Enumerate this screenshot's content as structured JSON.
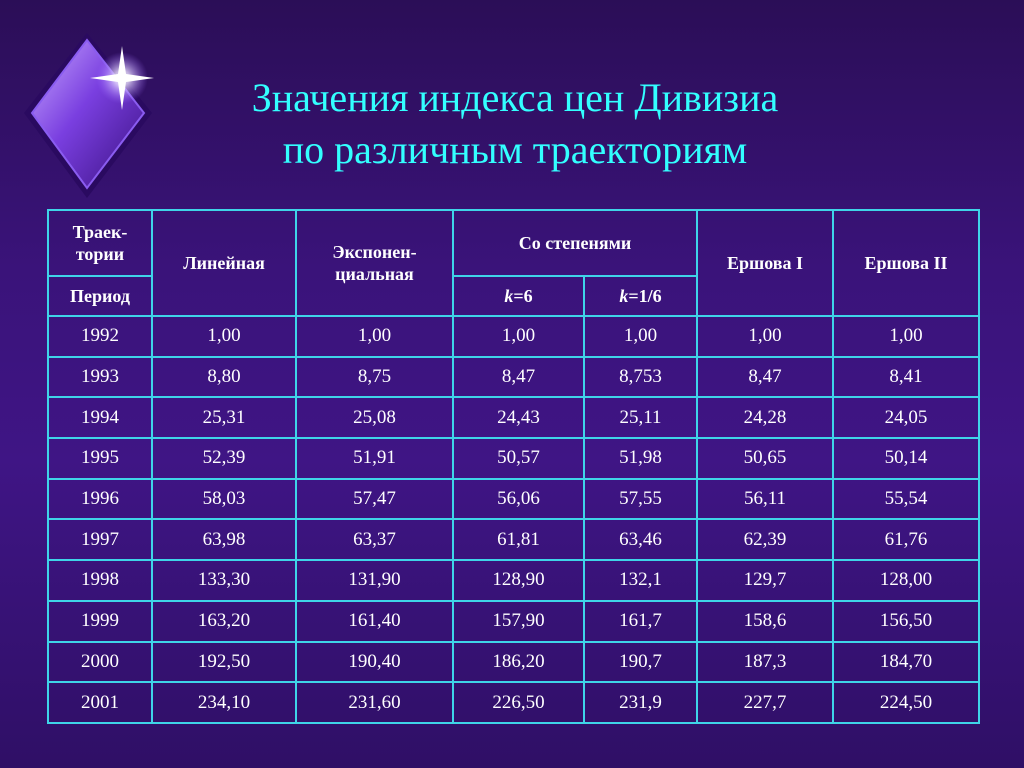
{
  "title": {
    "line1": "Значения индекса цен Дивизиа",
    "line2": "по различным траекториям"
  },
  "colors": {
    "background": "#3a137a",
    "title": "#33ffff",
    "grid": "#3fd4e8",
    "text": "#ffffff"
  },
  "decoration": {
    "icon": "sparkle-diamond-icon"
  },
  "table": {
    "header": {
      "trajectory": "Траек-тории",
      "period": "Период",
      "linear": "Линейная",
      "exponential": "Экспонен-циальная",
      "powers": "Со степенями",
      "k6": "k=6",
      "k16": "k=1/6",
      "ershov1": "Ершова I",
      "ershov2": "Ершова II"
    },
    "rows": [
      [
        "1992",
        "1,00",
        "1,00",
        "1,00",
        "1,00",
        "1,00",
        "1,00"
      ],
      [
        "1993",
        "8,80",
        "8,75",
        "8,47",
        "8,753",
        "8,47",
        "8,41"
      ],
      [
        "1994",
        "25,31",
        "25,08",
        "24,43",
        "25,11",
        "24,28",
        "24,05"
      ],
      [
        "1995",
        "52,39",
        "51,91",
        "50,57",
        "51,98",
        "50,65",
        "50,14"
      ],
      [
        "1996",
        "58,03",
        "57,47",
        "56,06",
        "57,55",
        "56,11",
        "55,54"
      ],
      [
        "1997",
        "63,98",
        "63,37",
        "61,81",
        "63,46",
        "62,39",
        "61,76"
      ],
      [
        "1998",
        "133,30",
        "131,90",
        "128,90",
        "132,1",
        "129,7",
        "128,00"
      ],
      [
        "1999",
        "163,20",
        "161,40",
        "157,90",
        "161,7",
        "158,6",
        "156,50"
      ],
      [
        "2000",
        "192,50",
        "190,40",
        "186,20",
        "190,7",
        "187,3",
        "184,70"
      ],
      [
        "2001",
        "234,10",
        "231,60",
        "226,50",
        "231,9",
        "227,7",
        "224,50"
      ]
    ]
  }
}
